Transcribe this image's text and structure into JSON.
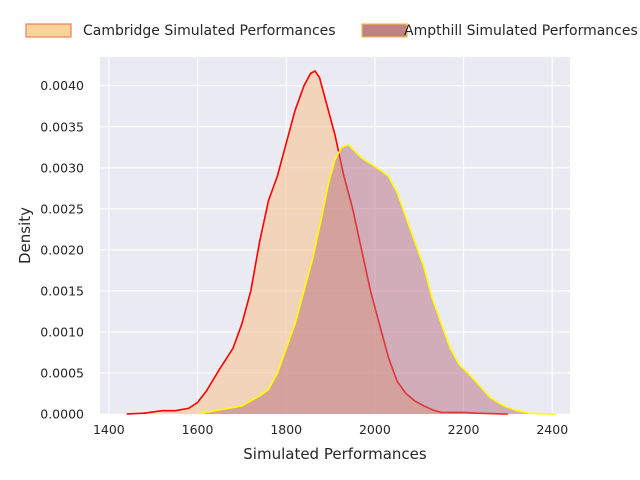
{
  "chart_data": {
    "type": "area",
    "title": "",
    "xlabel": "Simulated Performances",
    "ylabel": "Density",
    "xlim": [
      1380,
      2440
    ],
    "ylim": [
      0,
      0.00435
    ],
    "x_ticks": [
      1400,
      1600,
      1800,
      2000,
      2200,
      2400
    ],
    "y_ticks": [
      0,
      0.0005,
      0.001,
      0.0015,
      0.002,
      0.0025,
      0.003,
      0.0035,
      0.004
    ],
    "x_tick_labels": [
      "1400",
      "1600",
      "1800",
      "2000",
      "2200",
      "2400"
    ],
    "y_tick_labels": [
      "0.0000",
      "0.0005",
      "0.0010",
      "0.0015",
      "0.0020",
      "0.0025",
      "0.0030",
      "0.0035",
      "0.0040"
    ],
    "grid": true,
    "legend_position": "top",
    "series": [
      {
        "name": "Cambridge Simulated Performances",
        "line_color": "#ff0000",
        "fill_color": "#f4c89a",
        "legend_fill": "#fcd49a",
        "legend_edge": "#e8825a",
        "x": [
          1440,
          1480,
          1520,
          1550,
          1580,
          1600,
          1620,
          1650,
          1680,
          1700,
          1720,
          1740,
          1760,
          1780,
          1800,
          1820,
          1840,
          1855,
          1865,
          1875,
          1890,
          1910,
          1930,
          1950,
          1970,
          1990,
          2010,
          2030,
          2050,
          2070,
          2090,
          2110,
          2130,
          2150,
          2180,
          2200,
          2230,
          2260,
          2300
        ],
        "y": [
          0,
          1e-05,
          4e-05,
          4e-05,
          7e-05,
          0.00014,
          0.00028,
          0.00055,
          0.0008,
          0.0011,
          0.0015,
          0.0021,
          0.0026,
          0.0029,
          0.0033,
          0.0037,
          0.004,
          0.00415,
          0.00418,
          0.0041,
          0.0038,
          0.0034,
          0.0029,
          0.0025,
          0.002,
          0.0015,
          0.0011,
          0.0007,
          0.0004,
          0.00025,
          0.00016,
          0.0001,
          5e-05,
          2e-05,
          2e-05,
          2e-05,
          1e-05,
          5e-06,
          0
        ]
      },
      {
        "name": "Ampthill Simulated Performances",
        "line_color": "#ffff00",
        "fill_color": "#b76e80",
        "legend_fill": "#c08087",
        "legend_edge": "#e8c44a",
        "x": [
          1600,
          1650,
          1700,
          1740,
          1760,
          1780,
          1800,
          1820,
          1840,
          1860,
          1880,
          1895,
          1910,
          1925,
          1940,
          1955,
          1970,
          1990,
          2010,
          2030,
          2050,
          2070,
          2090,
          2110,
          2130,
          2150,
          2170,
          2190,
          2210,
          2230,
          2260,
          2290,
          2320,
          2350,
          2380,
          2410
        ],
        "y": [
          0,
          5e-05,
          0.0001,
          0.00022,
          0.0003,
          0.0005,
          0.0008,
          0.0011,
          0.0015,
          0.0019,
          0.0024,
          0.0028,
          0.0031,
          0.00325,
          0.00328,
          0.0032,
          0.00312,
          0.00305,
          0.00298,
          0.0029,
          0.0027,
          0.0024,
          0.0021,
          0.0018,
          0.0014,
          0.0011,
          0.0008,
          0.0006,
          0.0005,
          0.00038,
          0.0002,
          0.0001,
          4e-05,
          1e-05,
          3e-06,
          0
        ]
      }
    ]
  }
}
